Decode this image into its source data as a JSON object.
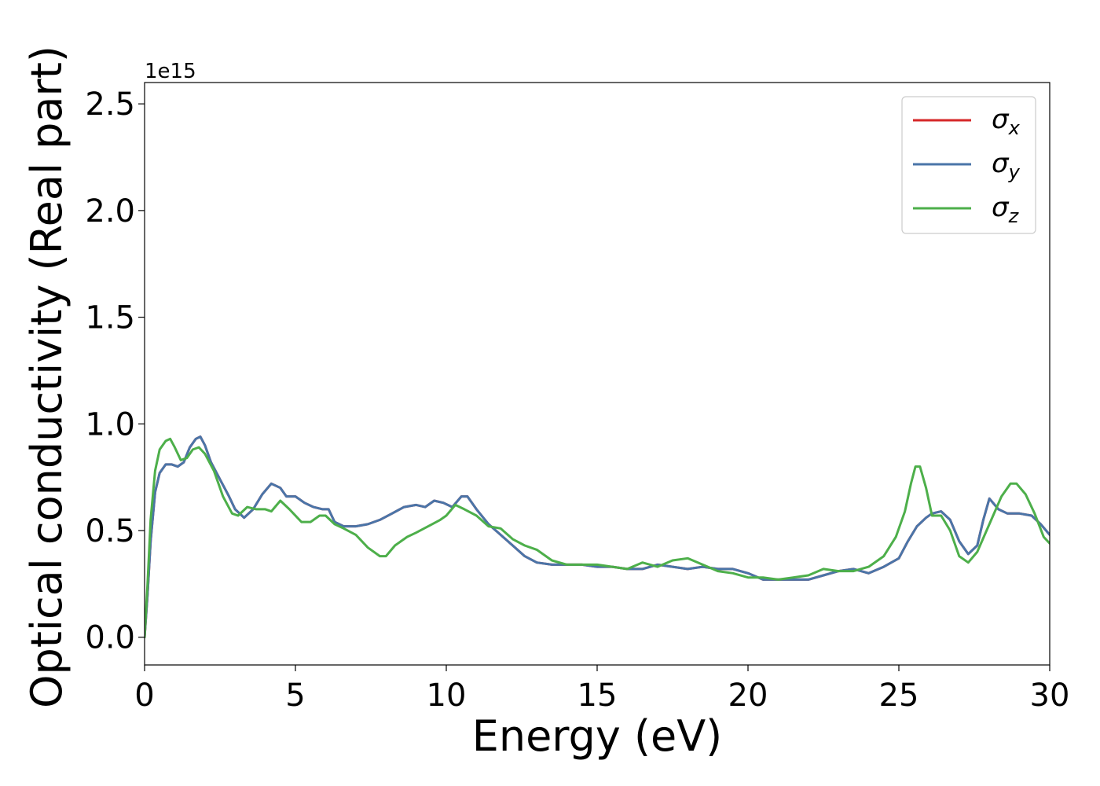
{
  "chart_data": {
    "type": "line",
    "xlabel": "Energy (eV)",
    "ylabel": "Optical conductivity (Real part)",
    "y_offset_text": "1e15",
    "xlim": [
      0,
      30
    ],
    "ylim": [
      -0.13,
      2.6
    ],
    "y_scale_factor": 1000000000000000.0,
    "x_ticks": [
      0,
      5,
      10,
      15,
      20,
      25,
      30
    ],
    "x_tick_labels": [
      "0",
      "5",
      "10",
      "15",
      "20",
      "25",
      "30"
    ],
    "y_ticks": [
      0.0,
      0.5,
      1.0,
      1.5,
      2.0,
      2.5
    ],
    "y_tick_labels": [
      "0.0",
      "0.5",
      "1.0",
      "1.5",
      "2.0",
      "2.5"
    ],
    "grid": false,
    "legend_position": "top-right",
    "series": [
      {
        "name": "σx",
        "symbol": "σ",
        "subscript": "x",
        "color": "#d62728",
        "x": [
          0,
          0.1,
          0.2,
          0.35,
          0.5,
          0.7,
          0.9,
          1.1,
          1.3,
          1.5,
          1.7,
          1.85,
          2.0,
          2.2,
          2.5,
          2.8,
          3.0,
          3.3,
          3.6,
          3.9,
          4.2,
          4.5,
          4.7,
          5.0,
          5.3,
          5.6,
          5.9,
          6.1,
          6.3,
          6.6,
          7.0,
          7.4,
          7.8,
          8.2,
          8.6,
          9.0,
          9.3,
          9.6,
          9.9,
          10.2,
          10.5,
          10.7,
          11.0,
          11.4,
          11.8,
          12.2,
          12.6,
          13.0,
          13.5,
          14.0,
          14.5,
          15.0,
          15.5,
          16.0,
          16.5,
          17.0,
          17.5,
          18.0,
          18.5,
          19.0,
          19.5,
          20.0,
          20.5,
          21.0,
          21.5,
          22.0,
          22.5,
          23.0,
          23.5,
          24.0,
          24.5,
          25.0,
          25.3,
          25.6,
          25.9,
          26.1,
          26.4,
          26.7,
          27.0,
          27.3,
          27.6,
          27.8,
          28.0,
          28.3,
          28.6,
          29.0,
          29.4,
          29.7,
          30.0
        ],
        "y": [
          0.0,
          0.2,
          0.45,
          0.68,
          0.77,
          0.81,
          0.81,
          0.8,
          0.82,
          0.89,
          0.93,
          0.94,
          0.9,
          0.82,
          0.74,
          0.66,
          0.6,
          0.56,
          0.6,
          0.67,
          0.72,
          0.7,
          0.66,
          0.66,
          0.63,
          0.61,
          0.6,
          0.6,
          0.54,
          0.52,
          0.52,
          0.53,
          0.55,
          0.58,
          0.61,
          0.62,
          0.61,
          0.64,
          0.63,
          0.61,
          0.66,
          0.66,
          0.6,
          0.53,
          0.48,
          0.43,
          0.38,
          0.35,
          0.34,
          0.34,
          0.34,
          0.33,
          0.33,
          0.32,
          0.32,
          0.34,
          0.33,
          0.32,
          0.33,
          0.32,
          0.32,
          0.3,
          0.27,
          0.27,
          0.27,
          0.27,
          0.29,
          0.31,
          0.32,
          0.3,
          0.33,
          0.37,
          0.45,
          0.52,
          0.56,
          0.58,
          0.59,
          0.55,
          0.45,
          0.39,
          0.43,
          0.55,
          0.65,
          0.6,
          0.58,
          0.58,
          0.57,
          0.53,
          0.48
        ]
      },
      {
        "name": "σy",
        "symbol": "σ",
        "subscript": "y",
        "color": "#4a75a8",
        "x": [
          0,
          0.1,
          0.2,
          0.35,
          0.5,
          0.7,
          0.9,
          1.1,
          1.3,
          1.5,
          1.7,
          1.85,
          2.0,
          2.2,
          2.5,
          2.8,
          3.0,
          3.3,
          3.6,
          3.9,
          4.2,
          4.5,
          4.7,
          5.0,
          5.3,
          5.6,
          5.9,
          6.1,
          6.3,
          6.6,
          7.0,
          7.4,
          7.8,
          8.2,
          8.6,
          9.0,
          9.3,
          9.6,
          9.9,
          10.2,
          10.5,
          10.7,
          11.0,
          11.4,
          11.8,
          12.2,
          12.6,
          13.0,
          13.5,
          14.0,
          14.5,
          15.0,
          15.5,
          16.0,
          16.5,
          17.0,
          17.5,
          18.0,
          18.5,
          19.0,
          19.5,
          20.0,
          20.5,
          21.0,
          21.5,
          22.0,
          22.5,
          23.0,
          23.5,
          24.0,
          24.5,
          25.0,
          25.3,
          25.6,
          25.9,
          26.1,
          26.4,
          26.7,
          27.0,
          27.3,
          27.6,
          27.8,
          28.0,
          28.3,
          28.6,
          29.0,
          29.4,
          29.7,
          30.0
        ],
        "y": [
          0.0,
          0.2,
          0.45,
          0.68,
          0.77,
          0.81,
          0.81,
          0.8,
          0.82,
          0.89,
          0.93,
          0.94,
          0.9,
          0.82,
          0.74,
          0.66,
          0.6,
          0.56,
          0.6,
          0.67,
          0.72,
          0.7,
          0.66,
          0.66,
          0.63,
          0.61,
          0.6,
          0.6,
          0.54,
          0.52,
          0.52,
          0.53,
          0.55,
          0.58,
          0.61,
          0.62,
          0.61,
          0.64,
          0.63,
          0.61,
          0.66,
          0.66,
          0.6,
          0.53,
          0.48,
          0.43,
          0.38,
          0.35,
          0.34,
          0.34,
          0.34,
          0.33,
          0.33,
          0.32,
          0.32,
          0.34,
          0.33,
          0.32,
          0.33,
          0.32,
          0.32,
          0.3,
          0.27,
          0.27,
          0.27,
          0.27,
          0.29,
          0.31,
          0.32,
          0.3,
          0.33,
          0.37,
          0.45,
          0.52,
          0.56,
          0.58,
          0.59,
          0.55,
          0.45,
          0.39,
          0.43,
          0.55,
          0.65,
          0.6,
          0.58,
          0.58,
          0.57,
          0.53,
          0.48
        ]
      },
      {
        "name": "σz",
        "symbol": "σ",
        "subscript": "z",
        "color": "#4daf4a",
        "x": [
          0,
          0.1,
          0.2,
          0.35,
          0.5,
          0.7,
          0.85,
          1.0,
          1.2,
          1.4,
          1.6,
          1.8,
          2.0,
          2.3,
          2.6,
          2.9,
          3.1,
          3.4,
          3.7,
          4.0,
          4.2,
          4.5,
          4.8,
          5.2,
          5.5,
          5.8,
          6.0,
          6.3,
          6.6,
          7.0,
          7.4,
          7.8,
          8.0,
          8.3,
          8.7,
          9.0,
          9.4,
          9.8,
          10.0,
          10.3,
          10.6,
          11.0,
          11.4,
          11.8,
          12.2,
          12.6,
          13.0,
          13.5,
          14.0,
          14.5,
          15.0,
          15.5,
          16.0,
          16.5,
          17.0,
          17.5,
          18.0,
          18.5,
          19.0,
          19.5,
          20.0,
          20.5,
          21.0,
          21.5,
          22.0,
          22.5,
          23.0,
          23.5,
          24.0,
          24.5,
          24.9,
          25.2,
          25.4,
          25.55,
          25.7,
          25.9,
          26.1,
          26.4,
          26.7,
          27.0,
          27.3,
          27.6,
          28.0,
          28.4,
          28.7,
          28.9,
          29.2,
          29.5,
          29.8,
          30.0
        ],
        "y": [
          0.0,
          0.25,
          0.55,
          0.78,
          0.88,
          0.92,
          0.93,
          0.89,
          0.83,
          0.84,
          0.88,
          0.89,
          0.86,
          0.78,
          0.66,
          0.58,
          0.57,
          0.61,
          0.6,
          0.6,
          0.59,
          0.64,
          0.6,
          0.54,
          0.54,
          0.57,
          0.57,
          0.53,
          0.51,
          0.48,
          0.42,
          0.38,
          0.38,
          0.43,
          0.47,
          0.49,
          0.52,
          0.55,
          0.57,
          0.62,
          0.6,
          0.57,
          0.52,
          0.51,
          0.46,
          0.43,
          0.41,
          0.36,
          0.34,
          0.34,
          0.34,
          0.33,
          0.32,
          0.35,
          0.33,
          0.36,
          0.37,
          0.34,
          0.31,
          0.3,
          0.28,
          0.28,
          0.27,
          0.28,
          0.29,
          0.32,
          0.31,
          0.31,
          0.33,
          0.38,
          0.47,
          0.59,
          0.72,
          0.8,
          0.8,
          0.7,
          0.57,
          0.57,
          0.5,
          0.38,
          0.35,
          0.4,
          0.53,
          0.66,
          0.72,
          0.72,
          0.67,
          0.58,
          0.47,
          0.44
        ]
      }
    ]
  }
}
